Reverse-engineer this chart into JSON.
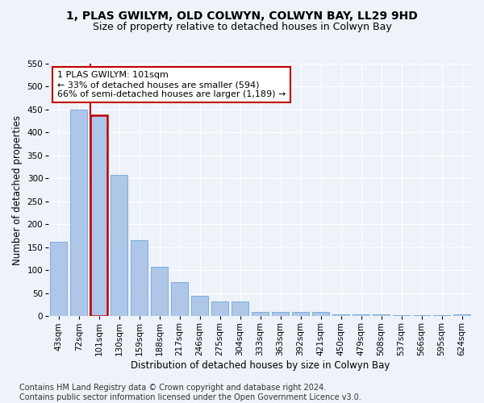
{
  "title": "1, PLAS GWILYM, OLD COLWYN, COLWYN BAY, LL29 9HD",
  "subtitle": "Size of property relative to detached houses in Colwyn Bay",
  "xlabel": "Distribution of detached houses by size in Colwyn Bay",
  "ylabel": "Number of detached properties",
  "categories": [
    "43sqm",
    "72sqm",
    "101sqm",
    "130sqm",
    "159sqm",
    "188sqm",
    "217sqm",
    "246sqm",
    "275sqm",
    "304sqm",
    "333sqm",
    "363sqm",
    "392sqm",
    "421sqm",
    "450sqm",
    "479sqm",
    "508sqm",
    "537sqm",
    "566sqm",
    "595sqm",
    "624sqm"
  ],
  "values": [
    163,
    450,
    437,
    307,
    165,
    107,
    74,
    45,
    32,
    32,
    10,
    10,
    9,
    9,
    5,
    5,
    5,
    3,
    3,
    3,
    5
  ],
  "highlight_index": 2,
  "highlight_color": "#c00000",
  "bar_color": "#aec6e8",
  "bar_edge_color": "#5b9bd5",
  "annotation_text": "1 PLAS GWILYM: 101sqm\n← 33% of detached houses are smaller (594)\n66% of semi-detached houses are larger (1,189) →",
  "annotation_box_color": "#ffffff",
  "annotation_box_edge": "#c00000",
  "footer": "Contains HM Land Registry data © Crown copyright and database right 2024.\nContains public sector information licensed under the Open Government Licence v3.0.",
  "ylim": [
    0,
    550
  ],
  "yticks": [
    0,
    50,
    100,
    150,
    200,
    250,
    300,
    350,
    400,
    450,
    500,
    550
  ],
  "background_color": "#eef2f9",
  "grid_color": "#ffffff",
  "title_fontsize": 10,
  "subtitle_fontsize": 9,
  "axis_label_fontsize": 8.5,
  "tick_fontsize": 7.5,
  "footer_fontsize": 7
}
